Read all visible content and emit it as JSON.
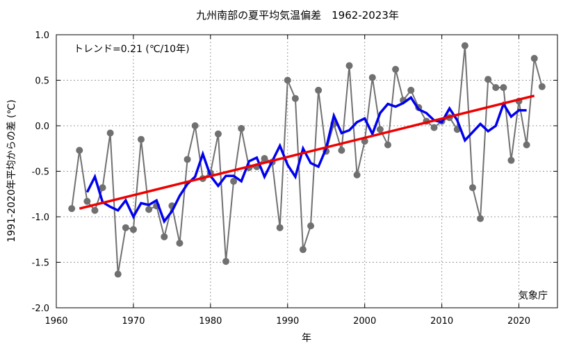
{
  "chart_data": {
    "type": "line",
    "title": "九州南部の夏平均気温偏差　1962-2023年",
    "xlabel": "年",
    "ylabel": "1991-2020年平均からの差 (℃)",
    "xlim": [
      1960,
      2025
    ],
    "ylim": [
      -2.0,
      1.0
    ],
    "xticks": [
      1960,
      1970,
      1980,
      1990,
      2000,
      2010,
      2020
    ],
    "yticks": [
      -2.0,
      -1.5,
      -1.0,
      -0.5,
      0.0,
      0.5,
      1.0
    ],
    "xtick_labels": [
      "1960",
      "1970",
      "1980",
      "1990",
      "2000",
      "2010",
      "2020"
    ],
    "ytick_labels": [
      "-2.0",
      "-1.5",
      "-1.0",
      "-0.5",
      "0.0",
      "0.5",
      "1.0"
    ],
    "grid": true,
    "trend_text": "トレンド=0.21 (℃/10年)",
    "source_text": "気象庁",
    "colors": {
      "annual": "#707070",
      "moving": "#0000ee",
      "trend": "#ee0000"
    },
    "series": [
      {
        "x": [
          1962,
          1963,
          1964,
          1965,
          1966,
          1967,
          1968,
          1969,
          1970,
          1971,
          1972,
          1973,
          1974,
          1975,
          1976,
          1977,
          1978,
          1979,
          1980,
          1981,
          1982,
          1983,
          1984,
          1985,
          1986,
          1987,
          1988,
          1989,
          1990,
          1991,
          1992,
          1993,
          1994,
          1995,
          1996,
          1997,
          1998,
          1999,
          2000,
          2001,
          2002,
          2003,
          2004,
          2005,
          2006,
          2007,
          2008,
          2009,
          2010,
          2011,
          2012,
          2013,
          2014,
          2015,
          2016,
          2017,
          2018,
          2019,
          2020,
          2021,
          2022,
          2023
        ],
        "values": [
          -0.91,
          -0.27,
          -0.83,
          -0.93,
          -0.68,
          -0.08,
          -1.63,
          -1.12,
          -1.14,
          -0.15,
          -0.92,
          -0.88,
          -1.22,
          -0.88,
          -1.29,
          -0.37,
          0.0,
          -0.58,
          -0.52,
          -0.09,
          -1.49,
          -0.61,
          -0.03,
          -0.46,
          -0.45,
          -0.36,
          -0.4,
          -1.12,
          0.5,
          0.3,
          -1.36,
          -1.1,
          0.39,
          -0.28,
          0.02,
          -0.27,
          0.66,
          -0.54,
          -0.17,
          0.53,
          -0.04,
          -0.21,
          0.62,
          0.28,
          0.39,
          0.2,
          0.05,
          -0.02,
          0.05,
          0.09,
          -0.04,
          0.88,
          -0.68,
          -1.02,
          0.51,
          0.42,
          0.42,
          -0.38,
          0.27,
          -0.21,
          0.74,
          0.43
        ]
      },
      {
        "x": [
          1964,
          1965,
          1966,
          1967,
          1968,
          1969,
          1970,
          1971,
          1972,
          1973,
          1974,
          1975,
          1976,
          1977,
          1978,
          1979,
          1980,
          1981,
          1982,
          1983,
          1984,
          1985,
          1986,
          1987,
          1988,
          1989,
          1990,
          1991,
          1992,
          1993,
          1994,
          1995,
          1996,
          1997,
          1998,
          1999,
          2000,
          2001,
          2002,
          2003,
          2004,
          2005,
          2006,
          2007,
          2008,
          2009,
          2010,
          2011,
          2012,
          2013,
          2014,
          2015,
          2016,
          2017,
          2018,
          2019,
          2020,
          2021
        ],
        "values": [
          -0.73,
          -0.56,
          -0.84,
          -0.89,
          -0.93,
          -0.82,
          -1.0,
          -0.85,
          -0.87,
          -0.82,
          -1.05,
          -0.94,
          -0.77,
          -0.64,
          -0.56,
          -0.31,
          -0.55,
          -0.66,
          -0.55,
          -0.55,
          -0.61,
          -0.39,
          -0.35,
          -0.56,
          -0.39,
          -0.22,
          -0.43,
          -0.56,
          -0.25,
          -0.41,
          -0.45,
          -0.25,
          0.11,
          -0.08,
          -0.05,
          0.04,
          0.08,
          -0.09,
          0.14,
          0.24,
          0.21,
          0.25,
          0.31,
          0.18,
          0.14,
          0.06,
          0.04,
          0.19,
          0.06,
          -0.16,
          -0.07,
          0.02,
          -0.06,
          0.0,
          0.24,
          0.1,
          0.17,
          0.17
        ]
      },
      {
        "x": [
          1963,
          2022
        ],
        "values": [
          -0.91,
          0.33
        ]
      }
    ]
  }
}
